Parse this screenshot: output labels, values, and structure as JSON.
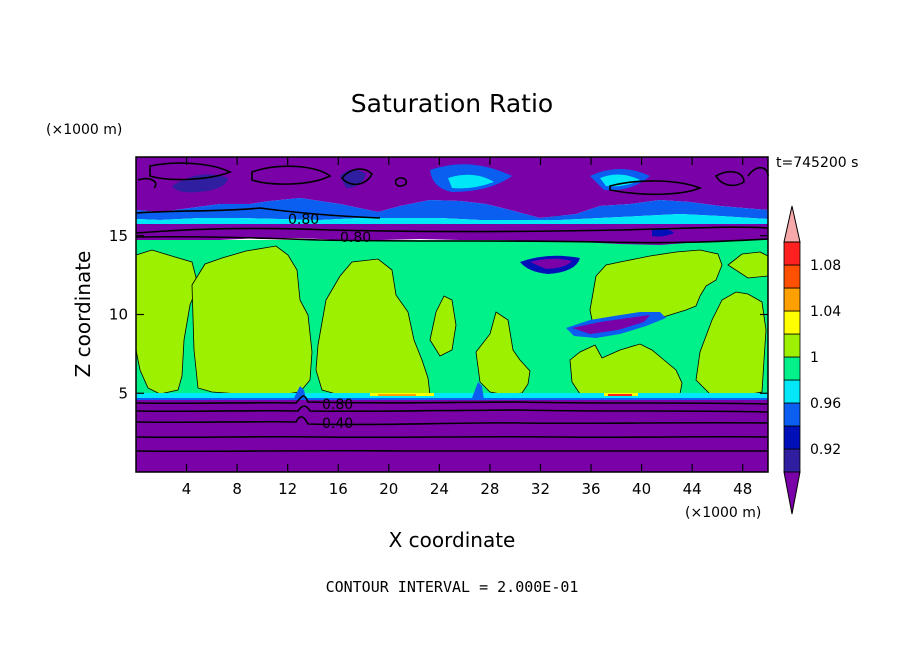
{
  "chart_data": {
    "type": "heatmap",
    "title": "Saturation Ratio",
    "xlabel": "X coordinate",
    "ylabel": "Z coordinate",
    "x_unit": "(×1000 m)",
    "y_unit": "(×1000 m)",
    "time_label": "t=745200 s",
    "footer": "CONTOUR INTERVAL = 2.000E-01",
    "xlim": [
      0,
      50
    ],
    "ylim": [
      0,
      20
    ],
    "x_ticks": [
      4,
      8,
      12,
      16,
      20,
      24,
      28,
      32,
      36,
      40,
      44,
      48
    ],
    "y_ticks": [
      5,
      10,
      15
    ],
    "colorbar": {
      "labels": [
        "0.92",
        "0.96",
        "1",
        "1.04",
        "1.08"
      ],
      "label_values": [
        0.92,
        0.96,
        1.0,
        1.04,
        1.08
      ],
      "bins": [
        {
          "min": null,
          "max": 0.9,
          "color": "#7a00a8"
        },
        {
          "min": 0.9,
          "max": 0.92,
          "color": "#2f1fa0"
        },
        {
          "min": 0.92,
          "max": 0.94,
          "color": "#0010b8"
        },
        {
          "min": 0.94,
          "max": 0.96,
          "color": "#0a5ef0"
        },
        {
          "min": 0.96,
          "max": 0.98,
          "color": "#00e8f8"
        },
        {
          "min": 0.98,
          "max": 1.0,
          "color": "#00f08a"
        },
        {
          "min": 1.0,
          "max": 1.02,
          "color": "#9cf000"
        },
        {
          "min": 1.02,
          "max": 1.04,
          "color": "#ffff00"
        },
        {
          "min": 1.04,
          "max": 1.06,
          "color": "#ffa000"
        },
        {
          "min": 1.06,
          "max": 1.08,
          "color": "#ff5000"
        },
        {
          "min": 1.08,
          "max": 1.1,
          "color": "#ff2020"
        },
        {
          "min": 1.1,
          "max": null,
          "color": "#f7a8a8"
        }
      ]
    },
    "contour_labels": [
      {
        "text": "0.80",
        "x": 14.5,
        "y": 16.6
      },
      {
        "text": "0.80",
        "x": 17.8,
        "y": 14.9
      },
      {
        "text": "0.80",
        "x": 14.5,
        "y": 4.4
      },
      {
        "text": "0.40",
        "x": 14.5,
        "y": 3.1
      }
    ],
    "regions": {
      "upper_dry_layer": {
        "z_range": [
          15.3,
          20
        ],
        "value": "<0.90"
      },
      "cloud_layer": {
        "z_range": [
          4.8,
          15.3
        ],
        "values": [
          "0.98-1.00",
          "1.00-1.02"
        ]
      },
      "lower_dry_layer": {
        "z_range": [
          0,
          4.8
        ],
        "value": "<0.90"
      }
    }
  }
}
